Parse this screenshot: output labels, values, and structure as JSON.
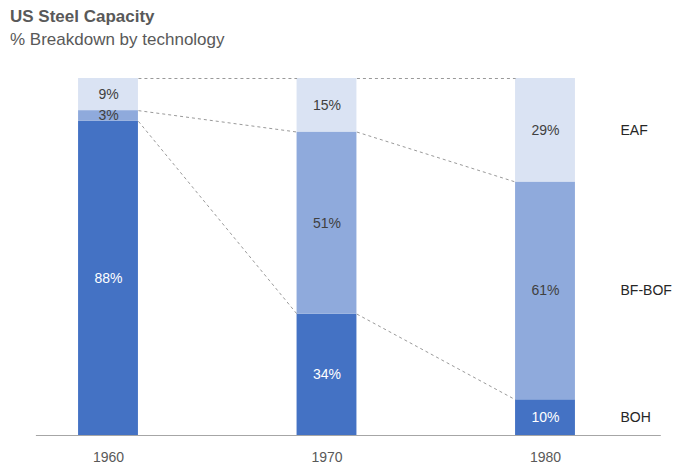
{
  "chart_data": {
    "type": "bar",
    "title": "US Steel Capacity",
    "subtitle": "% Breakdown by technology",
    "categories": [
      "1960",
      "1970",
      "1980"
    ],
    "series": [
      {
        "name": "BOH",
        "color": "#4472c4",
        "values": [
          88,
          34,
          10
        ],
        "value_labels": [
          "88%",
          "34%",
          "10%"
        ]
      },
      {
        "name": "BF-BOF",
        "color": "#8faadc",
        "values": [
          3,
          51,
          61
        ],
        "value_labels": [
          "3%",
          "51%",
          "61%"
        ]
      },
      {
        "name": "EAF",
        "color": "#dae3f3",
        "values": [
          9,
          15,
          29
        ],
        "value_labels": [
          "9%",
          "15%",
          "29%"
        ]
      }
    ],
    "stacked": true,
    "data_labels": true,
    "legend": "right",
    "tick_labels": "x",
    "ylim": [
      0,
      100
    ]
  }
}
